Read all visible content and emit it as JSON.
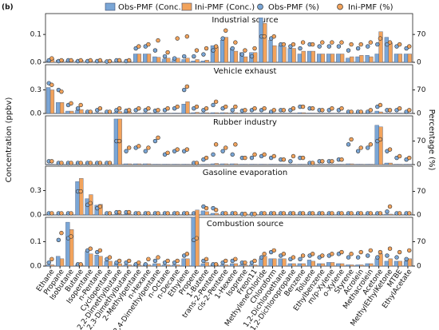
{
  "chart_data": {
    "type": "bar",
    "label": "(b)",
    "y_label": "Concentration (ppbv)",
    "y2_label": "Percentage (%)",
    "legend": [
      {
        "name": "Obs-PMF (Conc.)",
        "color": "#7aa6d6",
        "marker": "bar"
      },
      {
        "name": "Ini-PMF (Conc.)",
        "color": "#f2a35c",
        "marker": "bar"
      },
      {
        "name": "Obs-PMF (%)",
        "color": "#7aa6d6",
        "marker": "dot"
      },
      {
        "name": "Ini-PMF (%)",
        "color": "#f2a35c",
        "marker": "dot"
      }
    ],
    "categories": [
      "Ethane",
      "Propane",
      "Isobutane",
      "Butane",
      "Isopentane",
      "n-Pentane",
      "Cyclopentane",
      "2,2-Dimethylbutane",
      "2,3-Dimethylbutane",
      "2-Methylpentane",
      "n-Hexane",
      "2,4-Dimethylpentane",
      "n-Octane",
      "n-Decane",
      "Ethylene",
      "Propene",
      "1-Butene",
      "trans-2-Pentene",
      "cis-2-Pentene",
      "1-Hexene",
      "Isoprene",
      "Freon11",
      "MethyleneChloride",
      "Chloroform",
      "1,2-Dichloroethane",
      "1,2-Dichloropropane",
      "Benzene",
      "Toluene",
      "Ethylbenzene",
      "m/p-Xylene",
      "o-Xylene",
      "Styrene",
      "Acrolein",
      "Methacrolein",
      "Acetone",
      "MethylEthylKetone",
      "MTBE",
      "EthylAcetate"
    ],
    "panels": [
      {
        "title": "Industrial source",
        "ylim": [
          0,
          0.175
        ],
        "yticks": [
          {
            "value": 0,
            "label": "0.0"
          },
          0.1
        ],
        "y2lim": [
          0,
          122.5
        ],
        "y2ticks": [
          0,
          70
        ],
        "series": [
          {
            "values": [
              0.005,
              0.008,
              0.005,
              0.005,
              0.004,
              0.004,
              0.002,
              0.003,
              0.002,
              0.03,
              0.03,
              0.02,
              0.012,
              0.01,
              0.01,
              0.005,
              0.005,
              0.06,
              0.08,
              0.05,
              0.035,
              0.035,
              0.16,
              0.08,
              0.06,
              0.05,
              0.03,
              0.04,
              0.03,
              0.03,
              0.03,
              0.015,
              0.02,
              0.025,
              0.03,
              0.09,
              0.03,
              0.03
            ]
          },
          {
            "values": [
              0.012,
              0.01,
              0.008,
              0.008,
              0.006,
              0.005,
              0.004,
              0.004,
              0.003,
              0.03,
              0.03,
              0.018,
              0.015,
              0.015,
              0.015,
              0.01,
              0.008,
              0.055,
              0.09,
              0.04,
              0.02,
              0.035,
              0.14,
              0.06,
              0.055,
              0.05,
              0.04,
              0.04,
              0.03,
              0.03,
              0.03,
              0.02,
              0.025,
              0.02,
              0.11,
              0.07,
              0.03,
              0.03
            ]
          },
          {
            "axis": "y2",
            "values": [
              5,
              3,
              5,
              3,
              3,
              3,
              2,
              5,
              3,
              35,
              40,
              30,
              15,
              10,
              15,
              15,
              20,
              30,
              60,
              35,
              20,
              15,
              65,
              60,
              45,
              40,
              35,
              45,
              40,
              40,
              40,
              30,
              35,
              40,
              45,
              45,
              40,
              35
            ]
          },
          {
            "axis": "y2",
            "values": [
              10,
              5,
              5,
              5,
              5,
              5,
              3,
              5,
              5,
              40,
              45,
              55,
              25,
              60,
              65,
              30,
              35,
              40,
              80,
              50,
              30,
              35,
              65,
              65,
              45,
              45,
              50,
              45,
              50,
              50,
              50,
              45,
              45,
              50,
              60,
              50,
              45,
              40
            ]
          }
        ]
      },
      {
        "title": "Vehicle exhaust",
        "ylim": [
          0,
          0.62
        ],
        "yticks": [
          {
            "value": 0,
            "label": "0.0"
          },
          0.3
        ],
        "y2lim": [
          0,
          145
        ],
        "y2ticks": [
          0,
          70
        ],
        "series": [
          {
            "values": [
              0.33,
              0.14,
              0.03,
              0.04,
              0.005,
              0.01,
              0.005,
              0.02,
              0.02,
              0.005,
              0.01,
              0.005,
              0.005,
              0.005,
              0.12,
              0.01,
              0.01,
              0.01,
              0.01,
              0.01,
              0.005,
              0.005,
              0.005,
              0.005,
              0.005,
              0.005,
              0.01,
              0.005,
              0.005,
              0.005,
              0.005,
              0.003,
              0.005,
              0.005,
              0.03,
              0.005,
              0.005,
              0.005
            ]
          },
          {
            "values": [
              0.3,
              0.14,
              0.03,
              0.05,
              0.005,
              0.01,
              0.005,
              0.025,
              0.02,
              0.005,
              0.01,
              0.005,
              0.005,
              0.005,
              0.15,
              0.015,
              0.01,
              0.01,
              0.01,
              0.01,
              0.005,
              0.005,
              0.005,
              0.005,
              0.005,
              0.005,
              0.01,
              0.005,
              0.005,
              0.005,
              0.005,
              0.003,
              0.005,
              0.005,
              0.02,
              0.005,
              0.005,
              0.005
            ]
          },
          {
            "axis": "y2",
            "values": [
              90,
              70,
              25,
              15,
              5,
              10,
              5,
              10,
              8,
              10,
              10,
              8,
              10,
              15,
              70,
              15,
              10,
              25,
              15,
              10,
              8,
              10,
              10,
              5,
              10,
              10,
              20,
              15,
              10,
              10,
              10,
              5,
              5,
              5,
              20,
              10,
              10,
              5
            ]
          },
          {
            "axis": "y2",
            "values": [
              85,
              65,
              30,
              25,
              5,
              15,
              5,
              15,
              10,
              15,
              15,
              10,
              15,
              20,
              80,
              20,
              15,
              35,
              20,
              20,
              10,
              15,
              15,
              10,
              10,
              15,
              20,
              15,
              10,
              15,
              15,
              5,
              5,
              10,
              25,
              10,
              15,
              10
            ]
          }
        ]
      },
      {
        "title": "Rubber industry",
        "ylim": [
          0,
          0.62
        ],
        "yticks": [],
        "y2lim": [
          0,
          145
        ],
        "y2ticks": [
          0,
          70
        ],
        "series": [
          {
            "values": [
              0.005,
              0.005,
              0.005,
              0.005,
              0.005,
              0.005,
              0.005,
              0.58,
              0.01,
              0.01,
              0.01,
              0.005,
              0.005,
              0.005,
              0.005,
              0.005,
              0.005,
              0.01,
              0.01,
              0.01,
              0.005,
              0.005,
              0.005,
              0.005,
              0.005,
              0.005,
              0.005,
              0.005,
              0.005,
              0.005,
              0.005,
              0.01,
              0.005,
              0.005,
              0.5,
              0.02,
              0.005,
              0.005
            ]
          },
          {
            "values": [
              0.005,
              0.005,
              0.005,
              0.005,
              0.005,
              0.005,
              0.005,
              0.58,
              0.01,
              0.01,
              0.01,
              0.005,
              0.005,
              0.005,
              0.005,
              0.005,
              0.005,
              0.015,
              0.01,
              0.01,
              0.005,
              0.005,
              0.005,
              0.005,
              0.005,
              0.005,
              0.005,
              0.005,
              0.005,
              0.005,
              0.005,
              0.01,
              0.005,
              0.005,
              0.48,
              0.02,
              0.005,
              0.005
            ]
          },
          {
            "axis": "y2",
            "values": [
              10,
              5,
              5,
              5,
              5,
              5,
              5,
              70,
              40,
              50,
              40,
              70,
              30,
              40,
              40,
              5,
              15,
              30,
              40,
              30,
              20,
              20,
              25,
              20,
              15,
              10,
              20,
              5,
              10,
              10,
              15,
              60,
              40,
              50,
              70,
              40,
              20,
              15
            ]
          },
          {
            "axis": "y2",
            "values": [
              10,
              5,
              5,
              5,
              5,
              5,
              5,
              70,
              50,
              55,
              50,
              80,
              35,
              45,
              45,
              5,
              20,
              60,
              50,
              60,
              20,
              30,
              30,
              25,
              15,
              25,
              20,
              5,
              10,
              10,
              15,
              75,
              50,
              60,
              75,
              45,
              25,
              20
            ]
          }
        ]
      },
      {
        "title": "Gasoline evaporation",
        "ylim": [
          0,
          0.6
        ],
        "yticks": [
          {
            "value": 0,
            "label": "0.0"
          },
          0.3
        ],
        "y2lim": [
          0,
          145
        ],
        "y2ticks": [
          0,
          70
        ],
        "series": [
          {
            "values": [
              0.005,
              0.005,
              0.005,
              0.41,
              0.2,
              0.12,
              0.005,
              0.01,
              0.01,
              0.005,
              0.005,
              0.005,
              0.005,
              0.005,
              0.005,
              0.005,
              0.05,
              0.02,
              0.005,
              0.005,
              0.005,
              0.005,
              0.005,
              0.005,
              0.005,
              0.005,
              0.005,
              0.005,
              0.005,
              0.005,
              0.005,
              0.005,
              0.005,
              0.005,
              0.005,
              0.01,
              0.005,
              0.005
            ]
          },
          {
            "values": [
              0.005,
              0.005,
              0.005,
              0.45,
              0.25,
              0.13,
              0.005,
              0.01,
              0.01,
              0.005,
              0.005,
              0.005,
              0.005,
              0.005,
              0.005,
              0.005,
              0.04,
              0.02,
              0.005,
              0.005,
              0.005,
              0.005,
              0.005,
              0.005,
              0.005,
              0.005,
              0.005,
              0.005,
              0.005,
              0.005,
              0.005,
              0.005,
              0.005,
              0.005,
              0.005,
              0.01,
              0.005,
              0.005
            ]
          },
          {
            "axis": "y2",
            "values": [
              5,
              5,
              5,
              70,
              30,
              20,
              5,
              8,
              8,
              5,
              5,
              5,
              5,
              5,
              5,
              5,
              25,
              20,
              5,
              5,
              3,
              3,
              5,
              5,
              5,
              5,
              5,
              5,
              5,
              5,
              5,
              5,
              5,
              5,
              5,
              10,
              5,
              5
            ]
          },
          {
            "axis": "y2",
            "values": [
              5,
              5,
              5,
              70,
              35,
              25,
              5,
              8,
              8,
              5,
              5,
              5,
              5,
              5,
              5,
              5,
              20,
              15,
              5,
              5,
              3,
              3,
              5,
              5,
              5,
              5,
              5,
              5,
              5,
              5,
              5,
              5,
              5,
              5,
              5,
              25,
              5,
              5
            ]
          }
        ]
      },
      {
        "title": "Combustion source",
        "ylim": [
          0,
          0.2
        ],
        "yticks": [
          {
            "value": 0,
            "label": "0.0"
          },
          0.1
        ],
        "y2lim": [
          0,
          140
        ],
        "y2ticks": [
          0,
          70
        ],
        "series": [
          {
            "values": [
              0.005,
              0.04,
              0.18,
              0.005,
              0.06,
              0.045,
              0.02,
              0.01,
              0.005,
              0.005,
              0.005,
              0.01,
              0.005,
              0.005,
              0.03,
              0.2,
              0.01,
              0.005,
              0.005,
              0.01,
              0.005,
              0.005,
              0.03,
              0.03,
              0.03,
              0.01,
              0.01,
              0.025,
              0.01,
              0.015,
              0.01,
              0.005,
              0.005,
              0.01,
              0.03,
              0.02,
              0.02,
              0.02
            ]
          },
          {
            "values": [
              0.005,
              0.03,
              0.15,
              0.005,
              0.05,
              0.04,
              0.02,
              0.01,
              0.005,
              0.005,
              0.005,
              0.01,
              0.005,
              0.005,
              0.03,
              0.23,
              0.015,
              0.005,
              0.005,
              0.01,
              0.005,
              0.005,
              0.04,
              0.03,
              0.03,
              0.01,
              0.01,
              0.02,
              0.01,
              0.015,
              0.01,
              0.005,
              0.005,
              0.01,
              0.05,
              0.03,
              0.02,
              0.03
            ]
          },
          {
            "axis": "y2",
            "values": [
              10,
              75,
              80,
              5,
              45,
              40,
              20,
              10,
              10,
              5,
              5,
              15,
              10,
              10,
              30,
              75,
              15,
              5,
              10,
              15,
              10,
              10,
              25,
              40,
              30,
              20,
              20,
              30,
              25,
              30,
              35,
              25,
              25,
              30,
              25,
              30,
              25,
              20
            ]
          },
          {
            "axis": "y2",
            "values": [
              20,
              95,
              85,
              5,
              50,
              45,
              25,
              15,
              15,
              10,
              20,
              25,
              15,
              15,
              35,
              80,
              20,
              5,
              15,
              20,
              10,
              15,
              35,
              45,
              35,
              25,
              30,
              35,
              30,
              35,
              40,
              35,
              40,
              45,
              40,
              50,
              40,
              45
            ]
          }
        ]
      }
    ]
  }
}
